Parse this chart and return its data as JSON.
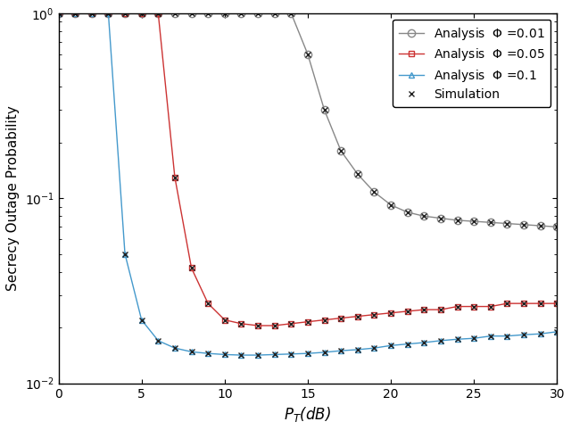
{
  "xlabel": "$P_T$(dB)",
  "ylabel": "Secrecy Outage Probability",
  "xlim": [
    0,
    30
  ],
  "xticks": [
    0,
    5,
    10,
    15,
    20,
    25,
    30
  ],
  "phi001_x": [
    0,
    1,
    2,
    3,
    4,
    5,
    6,
    7,
    8,
    9,
    10,
    11,
    12,
    13,
    14,
    15,
    16,
    17,
    18,
    19,
    20,
    21,
    22,
    23,
    24,
    25,
    26,
    27,
    28,
    29,
    30
  ],
  "phi001_y": [
    1.0,
    1.0,
    1.0,
    1.0,
    1.0,
    1.0,
    1.0,
    1.0,
    1.0,
    1.0,
    1.0,
    1.0,
    1.0,
    1.0,
    1.0,
    0.6,
    0.3,
    0.18,
    0.135,
    0.108,
    0.092,
    0.084,
    0.08,
    0.078,
    0.076,
    0.075,
    0.074,
    0.073,
    0.072,
    0.071,
    0.07
  ],
  "phi005_x": [
    0,
    1,
    2,
    3,
    4,
    5,
    6,
    7,
    8,
    9,
    10,
    11,
    12,
    13,
    14,
    15,
    16,
    17,
    18,
    19,
    20,
    21,
    22,
    23,
    24,
    25,
    26,
    27,
    28,
    29,
    30
  ],
  "phi005_y": [
    1.0,
    1.0,
    1.0,
    1.0,
    1.0,
    1.0,
    1.0,
    0.13,
    0.042,
    0.027,
    0.022,
    0.021,
    0.0205,
    0.0205,
    0.021,
    0.0215,
    0.022,
    0.0225,
    0.023,
    0.0235,
    0.024,
    0.0245,
    0.025,
    0.025,
    0.026,
    0.026,
    0.026,
    0.027,
    0.027,
    0.027,
    0.027
  ],
  "phi01_x": [
    0,
    1,
    2,
    3,
    4,
    5,
    6,
    7,
    8,
    9,
    10,
    11,
    12,
    13,
    14,
    15,
    16,
    17,
    18,
    19,
    20,
    21,
    22,
    23,
    24,
    25,
    26,
    27,
    28,
    29,
    30
  ],
  "phi01_y": [
    1.0,
    1.0,
    1.0,
    1.0,
    0.05,
    0.022,
    0.017,
    0.0155,
    0.0148,
    0.0145,
    0.0143,
    0.0142,
    0.0142,
    0.0143,
    0.0144,
    0.0145,
    0.0147,
    0.015,
    0.0152,
    0.0155,
    0.016,
    0.0163,
    0.0166,
    0.017,
    0.0173,
    0.0175,
    0.018,
    0.018,
    0.0183,
    0.0185,
    0.019
  ],
  "color_phi001": "#888888",
  "color_phi005": "#cc3333",
  "color_phi01": "#4499cc",
  "color_sim": "#222222",
  "background_color": "#ffffff"
}
